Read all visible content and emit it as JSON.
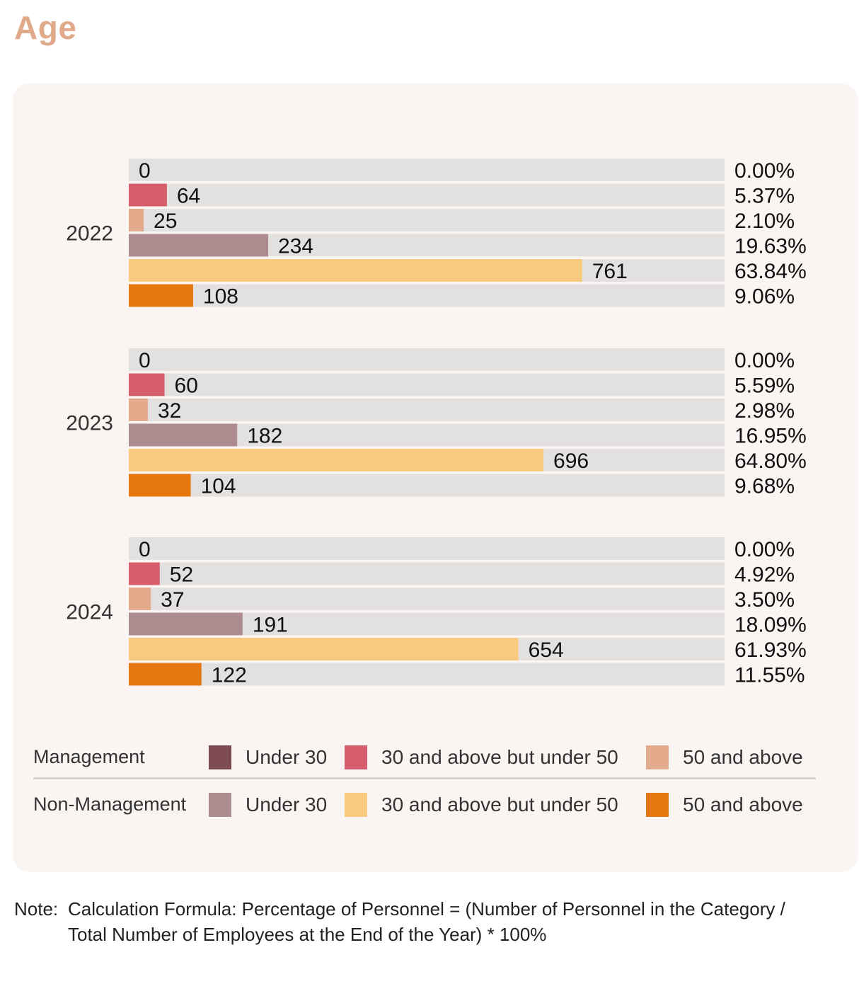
{
  "title": "Age",
  "chart_data": {
    "type": "bar",
    "orientation": "horizontal",
    "groups": [
      "2022",
      "2023",
      "2024"
    ],
    "xlim": [
      0,
      1000
    ],
    "series": [
      {
        "name": "Management - Under 30",
        "color": "#7e4b52",
        "values": [
          0,
          0,
          0
        ],
        "percent": [
          "0.00%",
          "0.00%",
          "0.00%"
        ]
      },
      {
        "name": "Management - 30 and above but under 50",
        "color": "#d75d6c",
        "values": [
          64,
          60,
          52
        ],
        "percent": [
          "5.37%",
          "5.59%",
          "4.92%"
        ]
      },
      {
        "name": "Management - 50 and above",
        "color": "#e4aa8c",
        "values": [
          25,
          32,
          37
        ],
        "percent": [
          "2.10%",
          "2.98%",
          "3.50%"
        ]
      },
      {
        "name": "Non-Management - Under 30",
        "color": "#ad8c8f",
        "values": [
          234,
          182,
          191
        ],
        "percent": [
          "19.63%",
          "16.95%",
          "18.09%"
        ]
      },
      {
        "name": "Non-Management - 30 and above but under 50",
        "color": "#f8ca80",
        "values": [
          761,
          696,
          654
        ],
        "percent": [
          "63.84%",
          "64.80%",
          "61.93%"
        ]
      },
      {
        "name": "Non-Management - 50 and above",
        "color": "#e57811",
        "values": [
          108,
          104,
          122
        ],
        "percent": [
          "9.06%",
          "9.68%",
          "11.55%"
        ]
      }
    ]
  },
  "legend": {
    "management_label": "Management",
    "non_management_label": "Non-Management",
    "management_items": [
      {
        "label": "Under 30",
        "color": "#7e4b52"
      },
      {
        "label": "30 and above but under 50",
        "color": "#d75d6c"
      },
      {
        "label": "50 and above",
        "color": "#e4aa8c"
      }
    ],
    "non_management_items": [
      {
        "label": "Under 30",
        "color": "#ad8c8f"
      },
      {
        "label": "30 and above but under 50",
        "color": "#f8ca80"
      },
      {
        "label": "50 and above",
        "color": "#e57811"
      }
    ]
  },
  "note": {
    "prefix": "Note:",
    "line1": "Calculation Formula: Percentage of Personnel = (Number of Personnel in the Category /",
    "line2": "Total Number of Employees at the End of the Year) * 100%"
  }
}
